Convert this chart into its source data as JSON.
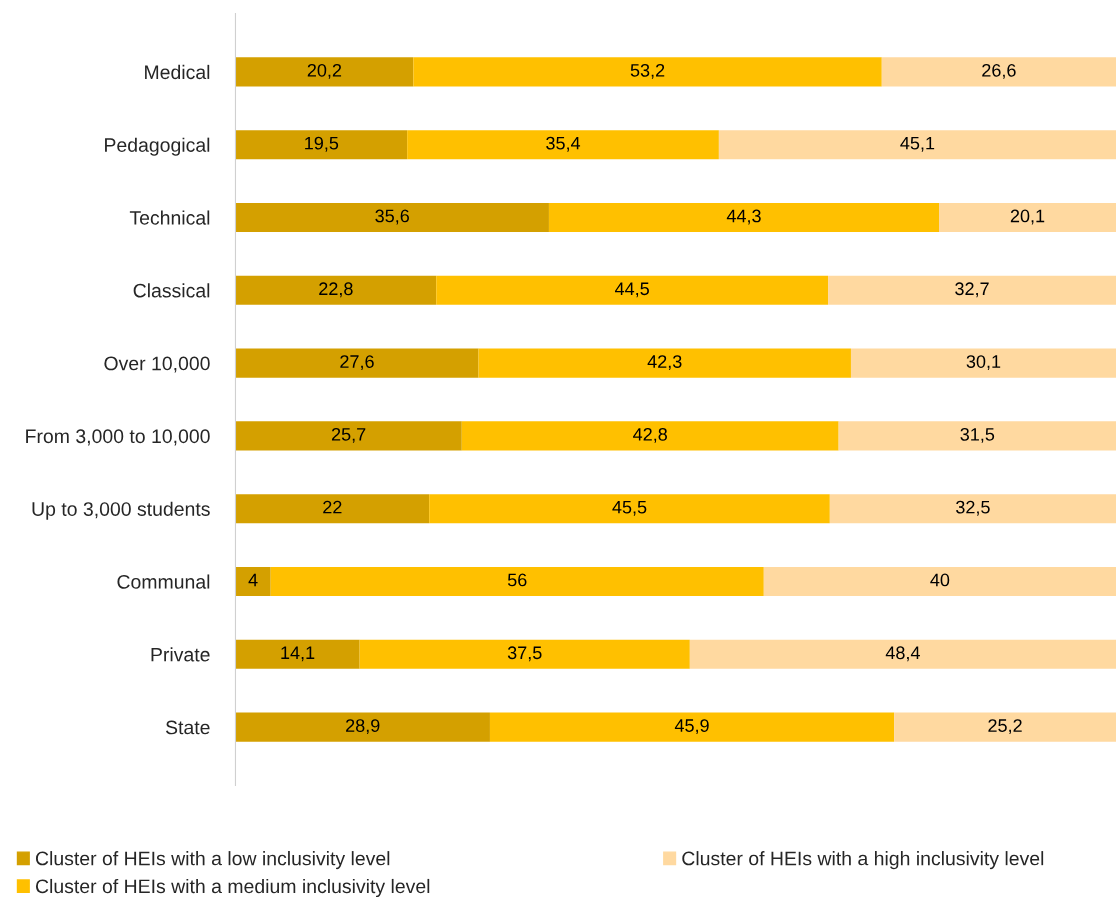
{
  "chart_data": {
    "type": "bar",
    "orientation": "horizontal",
    "stacked": true,
    "categories": [
      "Medical",
      "Pedagogical",
      "Technical",
      "Classical",
      "Over 10,000",
      "From 3,000 to 10,000",
      "Up to 3,000 students",
      "Communal",
      "Private",
      "State"
    ],
    "series": [
      {
        "name": "Cluster of HEIs with a low inclusivity level",
        "color": "#d4a000",
        "values": [
          20.2,
          19.5,
          35.6,
          22.8,
          27.6,
          25.7,
          22,
          4,
          14.1,
          28.9
        ],
        "value_labels": [
          "20,2",
          "19,5",
          "35,6",
          "22,8",
          "27,6",
          "25,7",
          "22",
          "4",
          "14,1",
          "28,9"
        ]
      },
      {
        "name": "Cluster of HEIs with a medium inclusivity level",
        "color": "#ffc000",
        "values": [
          53.2,
          35.4,
          44.3,
          44.5,
          42.3,
          42.8,
          45.5,
          56,
          37.5,
          45.9
        ],
        "value_labels": [
          "53,2",
          "35,4",
          "44,3",
          "44,5",
          "42,3",
          "42,8",
          "45,5",
          "56",
          "37,5",
          "45,9"
        ]
      },
      {
        "name": "Cluster of HEIs with a high inclusivity level",
        "color": "#ffd9a0",
        "values": [
          26.6,
          45.1,
          20.1,
          32.7,
          30.1,
          31.5,
          32.5,
          40,
          48.4,
          25.2
        ],
        "value_labels": [
          "26,6",
          "45,1",
          "20,1",
          "32,7",
          "30,1",
          "31,5",
          "32,5",
          "40",
          "48,4",
          "25,2"
        ]
      }
    ],
    "xlim": [
      0,
      100
    ],
    "tick_labels": "y",
    "grid": false,
    "legend": "bottom"
  }
}
